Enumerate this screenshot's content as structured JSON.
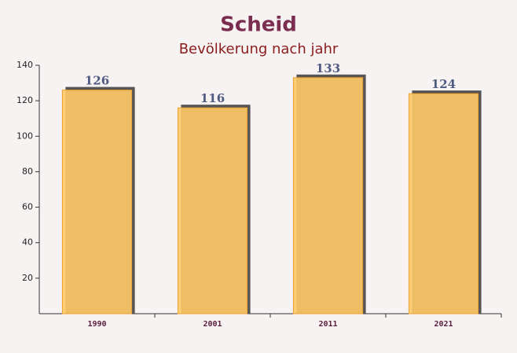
{
  "chart_data": {
    "type": "bar",
    "title": "Scheid",
    "subtitle": "Bevölkerung nach jahr",
    "categories": [
      "1990",
      "2001",
      "2011",
      "2021"
    ],
    "values": [
      126,
      116,
      133,
      124
    ],
    "color": "#ffc966",
    "ylim": [
      0,
      140
    ],
    "yticks": [
      20,
      40,
      60,
      80,
      100,
      120,
      140
    ]
  }
}
